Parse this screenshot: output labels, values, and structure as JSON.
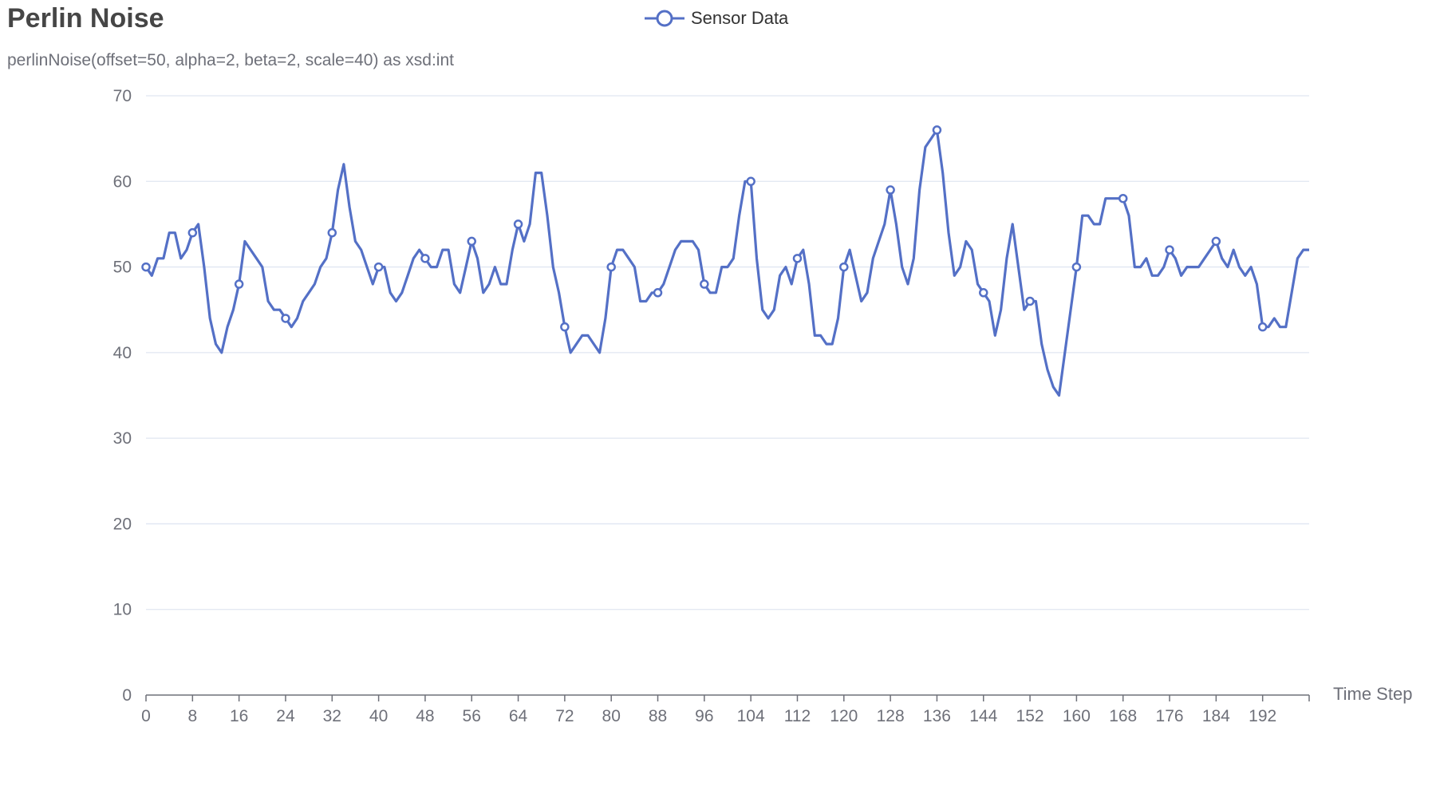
{
  "title": "Perlin Noise",
  "subtitle": "perlinNoise(offset=50, alpha=2, beta=2, scale=40) as xsd:int",
  "legend": {
    "label": "Sensor Data",
    "icon": "circle-line-icon"
  },
  "colors": {
    "series": "#5470c6",
    "grid": "#e0e6f1",
    "axis": "#6e7079",
    "title": "#464646"
  },
  "chart_data": {
    "type": "line",
    "title": "Perlin Noise",
    "subtitle": "perlinNoise(offset=50, alpha=2, beta=2, scale=40) as xsd:int",
    "xlabel": "Time Step",
    "ylabel": "",
    "ylim": [
      0,
      70
    ],
    "xlim": [
      0,
      200
    ],
    "yticks": [
      0,
      10,
      20,
      30,
      40,
      50,
      60,
      70
    ],
    "xticks": [
      0,
      8,
      16,
      24,
      32,
      40,
      48,
      56,
      64,
      72,
      80,
      88,
      96,
      104,
      112,
      120,
      128,
      136,
      144,
      152,
      160,
      168,
      176,
      184,
      192
    ],
    "grid": true,
    "legend_position": "top-center",
    "marker_every": 8,
    "series": [
      {
        "name": "Sensor Data",
        "x": [
          0,
          1,
          2,
          3,
          4,
          5,
          6,
          7,
          8,
          9,
          10,
          11,
          12,
          13,
          14,
          15,
          16,
          17,
          18,
          19,
          20,
          21,
          22,
          23,
          24,
          25,
          26,
          27,
          28,
          29,
          30,
          31,
          32,
          33,
          34,
          35,
          36,
          37,
          38,
          39,
          40,
          41,
          42,
          43,
          44,
          45,
          46,
          47,
          48,
          49,
          50,
          51,
          52,
          53,
          54,
          55,
          56,
          57,
          58,
          59,
          60,
          61,
          62,
          63,
          64,
          65,
          66,
          67,
          68,
          69,
          70,
          71,
          72,
          73,
          74,
          75,
          76,
          77,
          78,
          79,
          80,
          81,
          82,
          83,
          84,
          85,
          86,
          87,
          88,
          89,
          90,
          91,
          92,
          93,
          94,
          95,
          96,
          97,
          98,
          99,
          100,
          101,
          102,
          103,
          104,
          105,
          106,
          107,
          108,
          109,
          110,
          111,
          112,
          113,
          114,
          115,
          116,
          117,
          118,
          119,
          120,
          121,
          122,
          123,
          124,
          125,
          126,
          127,
          128,
          129,
          130,
          131,
          132,
          133,
          134,
          135,
          136,
          137,
          138,
          139,
          140,
          141,
          142,
          143,
          144,
          145,
          146,
          147,
          148,
          149,
          150,
          151,
          152,
          153,
          154,
          155,
          156,
          157,
          158,
          159,
          160,
          161,
          162,
          163,
          164,
          165,
          166,
          167,
          168,
          169,
          170,
          171,
          172,
          173,
          174,
          175,
          176,
          177,
          178,
          179,
          180,
          181,
          182,
          183,
          184,
          185,
          186,
          187,
          188,
          189,
          190,
          191,
          192,
          193,
          194,
          195,
          196,
          197,
          198,
          199,
          200
        ],
        "values": [
          50,
          49,
          51,
          51,
          54,
          54,
          51,
          52,
          54,
          55,
          50,
          44,
          41,
          40,
          43,
          45,
          48,
          53,
          52,
          51,
          50,
          46,
          45,
          45,
          44,
          43,
          44,
          46,
          47,
          48,
          50,
          51,
          54,
          59,
          62,
          57,
          53,
          52,
          50,
          48,
          50,
          50,
          47,
          46,
          47,
          49,
          51,
          52,
          51,
          50,
          50,
          52,
          52,
          48,
          47,
          50,
          53,
          51,
          47,
          48,
          50,
          48,
          48,
          52,
          55,
          53,
          55,
          61,
          61,
          56,
          50,
          47,
          43,
          40,
          41,
          42,
          42,
          41,
          40,
          44,
          50,
          52,
          52,
          51,
          50,
          46,
          46,
          47,
          47,
          48,
          50,
          52,
          53,
          53,
          53,
          52,
          48,
          47,
          47,
          50,
          50,
          51,
          56,
          60,
          60,
          51,
          45,
          44,
          45,
          49,
          50,
          48,
          51,
          52,
          48,
          42,
          42,
          41,
          41,
          44,
          50,
          52,
          49,
          46,
          47,
          51,
          53,
          55,
          59,
          55,
          50,
          48,
          51,
          59,
          64,
          65,
          66,
          61,
          54,
          49,
          50,
          53,
          52,
          48,
          47,
          46,
          42,
          45,
          51,
          55,
          50,
          45,
          46,
          46,
          41,
          38,
          36,
          35,
          40,
          45,
          50,
          56,
          56,
          55,
          55,
          58,
          58,
          58,
          58,
          56,
          50,
          50,
          51,
          49,
          49,
          50,
          52,
          51,
          49,
          50,
          50,
          50,
          51,
          52,
          53,
          51,
          50,
          52,
          50,
          49,
          50,
          48,
          43,
          43,
          44,
          43,
          43,
          47,
          51,
          52,
          52
        ]
      }
    ]
  }
}
